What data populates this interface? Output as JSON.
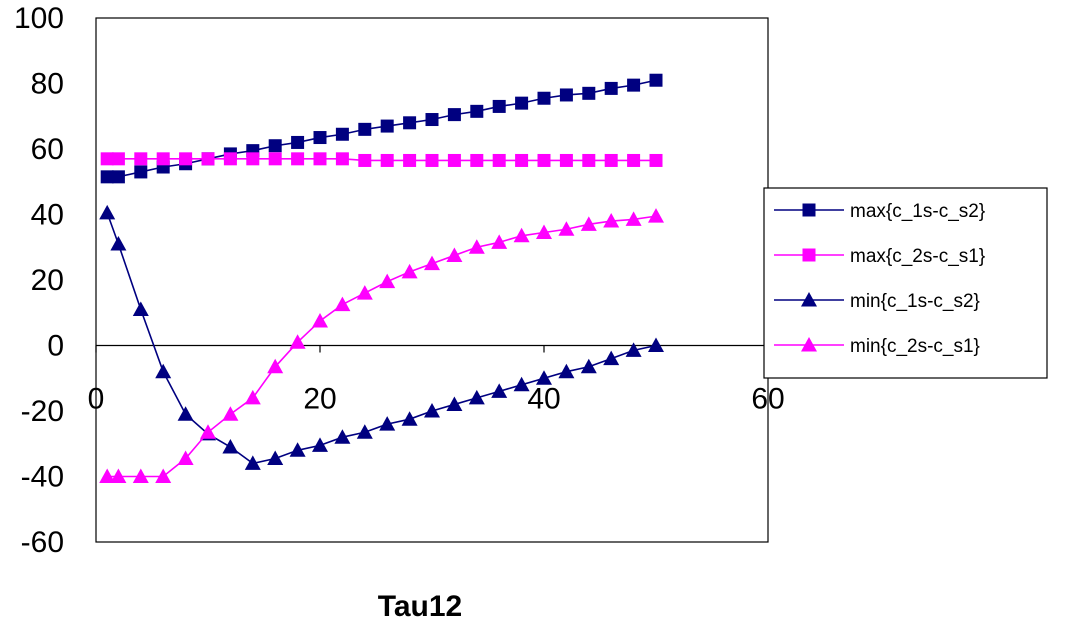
{
  "chart_data": {
    "type": "line",
    "title": "",
    "xlabel": "Tau12",
    "ylabel": "",
    "xlim": [
      0,
      60
    ],
    "ylim": [
      -60,
      100
    ],
    "x_ticks": [
      0,
      20,
      40,
      60
    ],
    "y_ticks": [
      -60,
      -40,
      -20,
      0,
      20,
      40,
      60,
      80,
      100
    ],
    "x_tick_labels": [
      "0",
      "20",
      "40",
      "60"
    ],
    "y_tick_labels": [
      "-60",
      "-40",
      "-20",
      "0",
      "20",
      "40",
      "60",
      "80",
      "100"
    ],
    "grid": false,
    "legend_position": "right",
    "x": [
      1,
      2,
      4,
      6,
      8,
      10,
      12,
      14,
      16,
      18,
      20,
      22,
      24,
      26,
      28,
      30,
      32,
      34,
      36,
      38,
      40,
      42,
      44,
      46,
      48,
      50
    ],
    "series": [
      {
        "name": "max{c_1s-c_s2}",
        "color": "#000080",
        "marker": "square",
        "values": [
          51.5,
          51.5,
          53,
          54.5,
          55.5,
          57,
          58.5,
          59.5,
          61,
          62,
          63.5,
          64.5,
          66,
          67,
          68,
          69,
          70.5,
          71.5,
          73,
          74,
          75.5,
          76.5,
          77,
          78.5,
          79.5,
          81
        ]
      },
      {
        "name": "max{c_2s-c_s1}",
        "color": "#FF00FF",
        "marker": "square",
        "values": [
          57,
          57,
          57,
          57,
          57,
          57,
          57,
          57,
          57,
          57,
          57,
          57,
          56.5,
          56.5,
          56.5,
          56.5,
          56.5,
          56.5,
          56.5,
          56.5,
          56.5,
          56.5,
          56.5,
          56.5,
          56.5,
          56.5
        ]
      },
      {
        "name": "min{c_1s-c_s2}",
        "color": "#000080",
        "marker": "triangle",
        "values": [
          40.5,
          31,
          11,
          -8,
          -21,
          -27,
          -31,
          -36,
          -34.5,
          -32,
          -30.5,
          -28,
          -26.5,
          -24,
          -22.5,
          -20,
          -18,
          -16,
          -14,
          -12,
          -10,
          -8,
          -6.5,
          -4,
          -1.5,
          0
        ]
      },
      {
        "name": "min{c_2s-c_s1}",
        "color": "#FF00FF",
        "marker": "triangle",
        "values": [
          -40,
          -40,
          -40,
          -40,
          -34.5,
          -26.5,
          -21,
          -16,
          -6.5,
          1,
          7.5,
          12.5,
          16,
          19.5,
          22.5,
          25,
          27.5,
          30,
          31.5,
          33.5,
          34.5,
          35.5,
          37,
          38,
          38.5,
          39.5
        ]
      }
    ]
  }
}
